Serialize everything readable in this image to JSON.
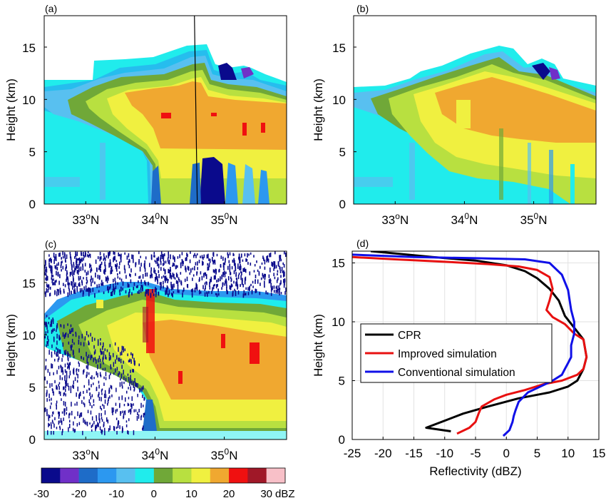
{
  "colorscale": {
    "unit": "dBZ",
    "ticks": [
      -30,
      -20,
      -10,
      0,
      10,
      20,
      30
    ],
    "levels": [
      -30,
      -25,
      -20,
      -15,
      -10,
      -5,
      0,
      5,
      10,
      15,
      20,
      25,
      30
    ],
    "colors": [
      "#0a0a8c",
      "#7030c8",
      "#1e6cc8",
      "#2c98f0",
      "#58c0f0",
      "#20ecec",
      "#70a838",
      "#b8e040",
      "#f0f040",
      "#f0a830",
      "#f01010",
      "#a01828",
      "#f8c0c8"
    ]
  },
  "panels": [
    {
      "label": "(a)",
      "ylabel": "Height (km)",
      "yticks": [
        "0",
        "5",
        "10",
        "15"
      ]
    },
    {
      "label": "(b)",
      "ylabel": "Height (km)",
      "yticks": [
        "0",
        "5",
        "10",
        "15"
      ]
    },
    {
      "label": "(c)",
      "ylabel": "Height (km)",
      "yticks": [
        "0",
        "5",
        "10",
        "15"
      ]
    }
  ],
  "lat_ticks": [
    {
      "value": 33,
      "base": "33",
      "sup": "o",
      "hemi": "N"
    },
    {
      "value": 34,
      "base": "34",
      "sup": "0",
      "hemi": "N"
    },
    {
      "value": 35,
      "base": "35",
      "sup": "0",
      "hemi": "N"
    }
  ],
  "chart_data": [
    {
      "type": "heatmap",
      "panel": "(a)",
      "xlim_latitude": [
        32.4,
        35.9
      ],
      "ylim_km": [
        0,
        18
      ],
      "marker_line_latitude": 34.6
    },
    {
      "type": "heatmap",
      "panel": "(b)",
      "xlim_latitude": [
        32.4,
        35.9
      ],
      "ylim_km": [
        0,
        18
      ]
    },
    {
      "type": "heatmap",
      "panel": "(c)",
      "xlim_latitude": [
        32.4,
        35.9
      ],
      "ylim_km": [
        0,
        18
      ]
    },
    {
      "type": "line",
      "panel": "(d)",
      "xlabel": "Reflectivity (dBZ)",
      "ylabel": "Height (km)",
      "xlim": [
        -25,
        15
      ],
      "ylim": [
        0,
        16
      ],
      "xticks": [
        -25,
        -20,
        -15,
        -10,
        -5,
        0,
        5,
        10,
        15
      ],
      "yticks": [
        0,
        5,
        10,
        15
      ],
      "grid": true,
      "legend_position": "left",
      "series": [
        {
          "name": "CPR",
          "color": "#000000",
          "points": [
            [
              -22,
              16
            ],
            [
              -18,
              15.8
            ],
            [
              -12,
              15.5
            ],
            [
              -5,
              15.2
            ],
            [
              0,
              14.8
            ],
            [
              3,
              14.3
            ],
            [
              5,
              13.7
            ],
            [
              7,
              12.8
            ],
            [
              8.5,
              11.8
            ],
            [
              9.5,
              10.5
            ],
            [
              11,
              9.5
            ],
            [
              12.5,
              8.5
            ],
            [
              13,
              7
            ],
            [
              12.5,
              6
            ],
            [
              11.5,
              5
            ],
            [
              10,
              4.5
            ],
            [
              7,
              4
            ],
            [
              2,
              3.5
            ],
            [
              -3,
              2.8
            ],
            [
              -7,
              2.2
            ],
            [
              -10,
              1.6
            ],
            [
              -13,
              1
            ],
            [
              -9,
              0.7
            ]
          ]
        },
        {
          "name": "Improved simulation",
          "color": "#e81010",
          "points": [
            [
              -25,
              15.5
            ],
            [
              -18,
              15.3
            ],
            [
              -10,
              15.1
            ],
            [
              -3,
              14.9
            ],
            [
              2,
              14.7
            ],
            [
              5,
              14.4
            ],
            [
              7,
              13.8
            ],
            [
              7.5,
              12.8
            ],
            [
              7,
              11.8
            ],
            [
              6.5,
              11
            ],
            [
              7.5,
              10.4
            ],
            [
              9.5,
              9.8
            ],
            [
              11,
              9
            ],
            [
              12.5,
              8.5
            ],
            [
              13,
              7
            ],
            [
              12.5,
              6
            ],
            [
              11.5,
              5.5
            ],
            [
              9,
              5
            ],
            [
              6,
              4.7
            ],
            [
              3,
              4.2
            ],
            [
              0,
              3.8
            ],
            [
              -2,
              3.4
            ],
            [
              -4,
              2.8
            ],
            [
              -4.5,
              2.2
            ],
            [
              -5,
              1.5
            ],
            [
              -6,
              1
            ],
            [
              -8,
              0.5
            ]
          ]
        },
        {
          "name": "Conventional simulation",
          "color": "#1010e8",
          "points": [
            [
              -25,
              15.7
            ],
            [
              -15,
              15.5
            ],
            [
              -5,
              15.4
            ],
            [
              3,
              15.3
            ],
            [
              7,
              15
            ],
            [
              9,
              14
            ],
            [
              10,
              12.7
            ],
            [
              10.5,
              11
            ],
            [
              11,
              10
            ],
            [
              11,
              9
            ],
            [
              10.5,
              8
            ],
            [
              10.5,
              7
            ],
            [
              10,
              6.5
            ],
            [
              9.5,
              6
            ],
            [
              9,
              5.5
            ],
            [
              7.5,
              5
            ],
            [
              5.5,
              4.5
            ],
            [
              3.5,
              4
            ],
            [
              2,
              3.2
            ],
            [
              1.5,
              2.5
            ],
            [
              1.2,
              2
            ],
            [
              1,
              1.5
            ],
            [
              0.5,
              0.8
            ],
            [
              -0.5,
              0.3
            ]
          ]
        }
      ]
    }
  ]
}
